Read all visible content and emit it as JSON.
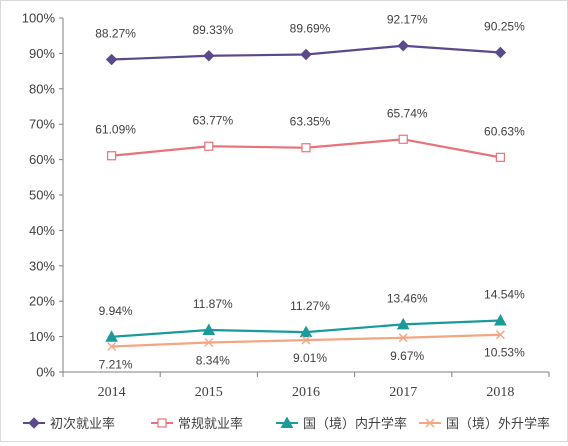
{
  "chart_data": {
    "type": "line",
    "title": "",
    "xlabel": "",
    "ylabel": "",
    "categories": [
      "2014",
      "2015",
      "2016",
      "2017",
      "2018"
    ],
    "ylim": [
      0,
      100
    ],
    "yticks": [
      "0%",
      "10%",
      "20%",
      "30%",
      "40%",
      "50%",
      "60%",
      "70%",
      "80%",
      "90%",
      "100%"
    ],
    "grid": false,
    "legend_position": "bottom",
    "series": [
      {
        "name": "初次就业率",
        "values": [
          88.27,
          89.33,
          89.69,
          92.17,
          90.25
        ],
        "labels": [
          "88.27%",
          "89.33%",
          "89.69%",
          "92.17%",
          "90.25%"
        ],
        "color": "#5b4a8b",
        "marker": "diamond",
        "label_position": "above"
      },
      {
        "name": "常规就业率",
        "values": [
          61.09,
          63.77,
          63.35,
          65.74,
          60.63
        ],
        "labels": [
          "61.09%",
          "63.77%",
          "63.35%",
          "65.74%",
          "60.63%"
        ],
        "color": "#e8737a",
        "marker": "square-open",
        "label_position": "above"
      },
      {
        "name": "国（境）内升学率",
        "values": [
          9.94,
          11.87,
          11.27,
          13.46,
          14.54
        ],
        "labels": [
          "9.94%",
          "11.87%",
          "11.27%",
          "13.46%",
          "14.54%"
        ],
        "color": "#1a9a9a",
        "marker": "triangle",
        "label_position": "above"
      },
      {
        "name": "国（境）外升学率",
        "values": [
          7.21,
          8.34,
          9.01,
          9.67,
          10.53
        ],
        "labels": [
          "7.21%",
          "8.34%",
          "9.01%",
          "9.67%",
          "10.53%"
        ],
        "color": "#f4a582",
        "marker": "x",
        "label_position": "below"
      }
    ]
  }
}
